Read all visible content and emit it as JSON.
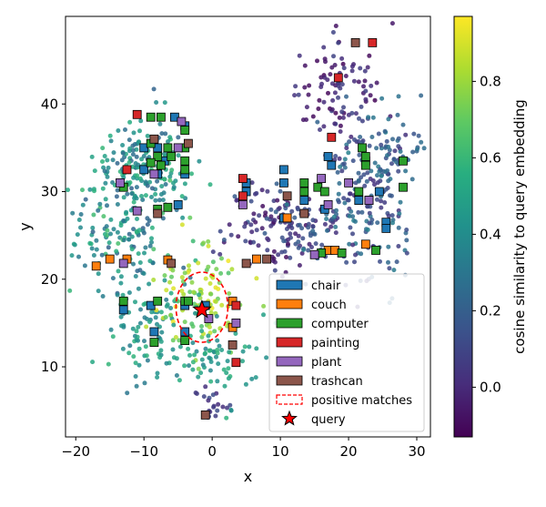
{
  "chart_data": {
    "type": "scatter",
    "xlabel": "x",
    "ylabel": "y",
    "xlim": [
      -21.5,
      32
    ],
    "ylim": [
      2,
      50
    ],
    "xticks": [
      -20,
      -10,
      0,
      10,
      20,
      30
    ],
    "yticks": [
      10,
      20,
      30,
      40
    ],
    "colorbar": {
      "label": "cosine similarity to query embedding",
      "range": [
        -0.13,
        0.97
      ],
      "ticks": [
        0.0,
        0.2,
        0.4,
        0.6,
        0.8
      ],
      "colormap": "viridis"
    },
    "legend": {
      "placement": "lower-right",
      "entries": [
        {
          "label": "chair",
          "color": "#1f77b4",
          "kind": "square"
        },
        {
          "label": "couch",
          "color": "#ff7f0e",
          "kind": "square"
        },
        {
          "label": "computer",
          "color": "#2ca02c",
          "kind": "square"
        },
        {
          "label": "painting",
          "color": "#d62728",
          "kind": "square"
        },
        {
          "label": "plant",
          "color": "#9467bd",
          "kind": "square"
        },
        {
          "label": "trashcan",
          "color": "#8c564b",
          "kind": "square"
        },
        {
          "label": "positive matches",
          "color": "#ff0000",
          "kind": "dashed-ellipse"
        },
        {
          "label": "query",
          "color": "#ff0000",
          "kind": "star"
        }
      ]
    },
    "query": {
      "x": -1.5,
      "y": 16.5
    },
    "positive_region": {
      "cx": -1.5,
      "cy": 16.8,
      "rx": 3.8,
      "ry": 4.0
    },
    "background_clusters": [
      {
        "cx": -10,
        "cy": 33,
        "sx": 3.5,
        "sy": 3.0,
        "n": 180,
        "sim": [
          0.2,
          0.6
        ]
      },
      {
        "cx": -13,
        "cy": 25,
        "sx": 4.0,
        "sy": 3.0,
        "n": 130,
        "sim": [
          0.2,
          0.65
        ]
      },
      {
        "cx": -10,
        "cy": 14,
        "sx": 3.0,
        "sy": 3.0,
        "n": 90,
        "sim": [
          0.3,
          0.6
        ]
      },
      {
        "cx": -2,
        "cy": 18,
        "sx": 3.0,
        "sy": 3.0,
        "n": 110,
        "sim": [
          0.65,
          0.95
        ]
      },
      {
        "cx": 0,
        "cy": 11,
        "sx": 3.0,
        "sy": 2.5,
        "n": 70,
        "sim": [
          0.35,
          0.6
        ]
      },
      {
        "cx": 0,
        "cy": 6,
        "sx": 1.5,
        "sy": 1.0,
        "n": 20,
        "sim": [
          0.0,
          0.15
        ]
      },
      {
        "cx": 10,
        "cy": 26,
        "sx": 4.0,
        "sy": 2.5,
        "n": 150,
        "sim": [
          -0.1,
          0.2
        ]
      },
      {
        "cx": 22,
        "cy": 30,
        "sx": 4.0,
        "sy": 5.0,
        "n": 200,
        "sim": [
          0.0,
          0.35
        ]
      },
      {
        "cx": 19,
        "cy": 42,
        "sx": 3.0,
        "sy": 3.0,
        "n": 90,
        "sim": [
          -0.12,
          0.1
        ]
      },
      {
        "cx": 27,
        "cy": 35,
        "sx": 2.0,
        "sy": 2.5,
        "n": 40,
        "sim": [
          0.1,
          0.3
        ]
      }
    ],
    "markers": [
      {
        "label": "chair",
        "points": [
          [
            -5.5,
            38.5
          ],
          [
            -4,
            37.5
          ],
          [
            -10,
            35
          ],
          [
            -8,
            35
          ],
          [
            -7,
            33.5
          ],
          [
            -10,
            32.5
          ],
          [
            -8,
            32
          ],
          [
            -4,
            32
          ],
          [
            -5,
            28.5
          ],
          [
            -13,
            16.5
          ],
          [
            -9,
            17
          ],
          [
            -8.5,
            14
          ],
          [
            -4,
            17
          ],
          [
            -4,
            14
          ],
          [
            -1,
            17
          ],
          [
            5,
            30
          ],
          [
            5,
            31
          ],
          [
            10.5,
            32.5
          ],
          [
            10.5,
            31
          ],
          [
            13.5,
            29
          ],
          [
            17,
            34
          ],
          [
            17.5,
            33
          ],
          [
            16.5,
            28
          ],
          [
            21.5,
            29
          ],
          [
            24.5,
            30
          ],
          [
            22.5,
            33.5
          ],
          [
            25.5,
            26.5
          ],
          [
            25.5,
            25.8
          ],
          [
            10.5,
            27
          ]
        ]
      },
      {
        "label": "couch",
        "points": [
          [
            -17,
            21.5
          ],
          [
            -15,
            22.3
          ],
          [
            -12.5,
            22.3
          ],
          [
            -6.5,
            22.2
          ],
          [
            6.5,
            22.3
          ],
          [
            3,
            17.5
          ],
          [
            3,
            14.5
          ],
          [
            11,
            27
          ],
          [
            17,
            23.3
          ],
          [
            18,
            23.3
          ],
          [
            22.5,
            24
          ]
        ]
      },
      {
        "label": "computer",
        "points": [
          [
            -9,
            38.5
          ],
          [
            -7.5,
            38.5
          ],
          [
            -4,
            37
          ],
          [
            -9,
            35.5
          ],
          [
            -6.5,
            35
          ],
          [
            -4,
            35
          ],
          [
            -8,
            34
          ],
          [
            -6,
            34
          ],
          [
            -9,
            33.3
          ],
          [
            -7.5,
            33
          ],
          [
            -4,
            33.5
          ],
          [
            -4,
            32.5
          ],
          [
            -8,
            28
          ],
          [
            -6.5,
            28.2
          ],
          [
            -13,
            30.5
          ],
          [
            -13,
            17.5
          ],
          [
            -8,
            17.5
          ],
          [
            -4,
            17.5
          ],
          [
            -8.5,
            12.8
          ],
          [
            -4,
            13
          ],
          [
            -3.5,
            17.5
          ],
          [
            13.5,
            31
          ],
          [
            13.5,
            30
          ],
          [
            15.5,
            30.5
          ],
          [
            16.5,
            30
          ],
          [
            16,
            23
          ],
          [
            19,
            23
          ],
          [
            21.5,
            30
          ],
          [
            22,
            35
          ],
          [
            22.5,
            34
          ],
          [
            22.5,
            33
          ],
          [
            23,
            29
          ],
          [
            24,
            23.3
          ],
          [
            28,
            33.5
          ],
          [
            28,
            30.5
          ]
        ]
      },
      {
        "label": "painting",
        "points": [
          [
            -11,
            38.8
          ],
          [
            -12.5,
            32.5
          ],
          [
            4.5,
            31.5
          ],
          [
            4.5,
            29.5
          ],
          [
            17.5,
            36.2
          ],
          [
            18.5,
            43
          ],
          [
            23.5,
            47
          ],
          [
            3.5,
            17
          ],
          [
            3.5,
            10.5
          ]
        ]
      },
      {
        "label": "plant",
        "points": [
          [
            -13.5,
            31
          ],
          [
            -13,
            21.8
          ],
          [
            -11,
            27.8
          ],
          [
            -8.5,
            32
          ],
          [
            -5,
            35
          ],
          [
            -4.5,
            38
          ],
          [
            4.5,
            28.5
          ],
          [
            15,
            22.8
          ],
          [
            23,
            29
          ],
          [
            -0.5,
            15.5
          ],
          [
            3.5,
            15
          ],
          [
            20,
            31
          ],
          [
            16,
            31.5
          ],
          [
            17,
            28.5
          ]
        ]
      },
      {
        "label": "trashcan",
        "points": [
          [
            -8.5,
            36
          ],
          [
            -3.5,
            35.5
          ],
          [
            -8,
            27.5
          ],
          [
            -6,
            21.8
          ],
          [
            5,
            21.8
          ],
          [
            8,
            22.3
          ],
          [
            11,
            29.5
          ],
          [
            13.5,
            27.5
          ],
          [
            21,
            47
          ],
          [
            3,
            12.5
          ],
          [
            -1,
            4.5
          ]
        ]
      }
    ]
  }
}
